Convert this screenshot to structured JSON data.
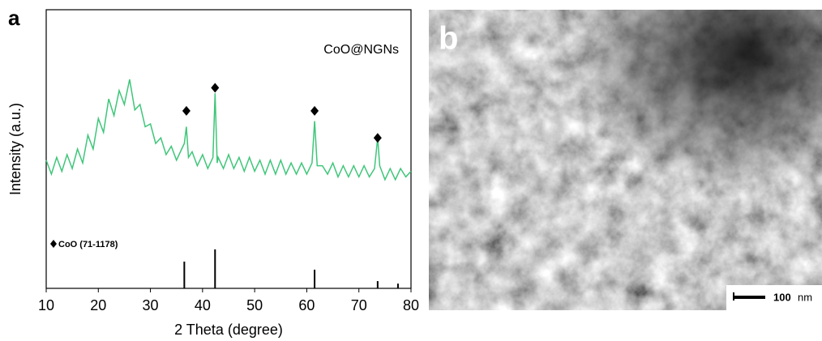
{
  "chart_data": {
    "type": "line",
    "panel_label": "a",
    "x_label": "2 Theta (degree)",
    "y_label": "Intensity (a.u.)",
    "xlim": [
      10,
      80
    ],
    "xticks": [
      10,
      20,
      30,
      40,
      50,
      60,
      70,
      80
    ],
    "ylim": [
      0,
      100
    ],
    "x": [
      10,
      11,
      12,
      13,
      14,
      15,
      16,
      17,
      18,
      19,
      20,
      21,
      22,
      23,
      24,
      25,
      26,
      27,
      28,
      29,
      30,
      31,
      32,
      33,
      34,
      35,
      36,
      36.5,
      36.9,
      37.3,
      38,
      39,
      40,
      41,
      42,
      42.4,
      42.8,
      43,
      44,
      45,
      46,
      47,
      48,
      49,
      50,
      51,
      52,
      53,
      54,
      55,
      56,
      57,
      58,
      59,
      60,
      61,
      61.5,
      62,
      63,
      64,
      65,
      66,
      67,
      68,
      69,
      70,
      71,
      72,
      73,
      73.6,
      74,
      75,
      76,
      77,
      78,
      79,
      80
    ],
    "series": [
      {
        "name": "CoO@NGNs",
        "color": "#3fc67a",
        "values": [
          46,
          41,
          47,
          42,
          48,
          43,
          50,
          45,
          55,
          50,
          61,
          56,
          68,
          62,
          71,
          66,
          75,
          64,
          66,
          58,
          59,
          52,
          54,
          48,
          51,
          46,
          50,
          52,
          58,
          47,
          49,
          44,
          48,
          43,
          47,
          70,
          45,
          47,
          43,
          48,
          43,
          47,
          42,
          47,
          42,
          46,
          41,
          46,
          41,
          46,
          41,
          45,
          41,
          45,
          41,
          45,
          60,
          44,
          44,
          41,
          45,
          40,
          44,
          40,
          44,
          40,
          44,
          40,
          43,
          54,
          44,
          39,
          43,
          39,
          43,
          40,
          42
        ]
      }
    ],
    "markers": {
      "x": [
        36.9,
        42.4,
        61.5,
        73.6
      ],
      "values": [
        63.7,
        72,
        63.7,
        54
      ]
    },
    "reference": {
      "name": "CoO (71-1178)",
      "color": "#000000",
      "x": [
        36.5,
        42.4,
        61.5,
        73.6,
        77.5
      ],
      "values": [
        9.6,
        14,
        6.7,
        2.6,
        1.7
      ]
    }
  },
  "panel_b": {
    "label": "b",
    "scale_value": "100",
    "scale_unit": "nm"
  }
}
